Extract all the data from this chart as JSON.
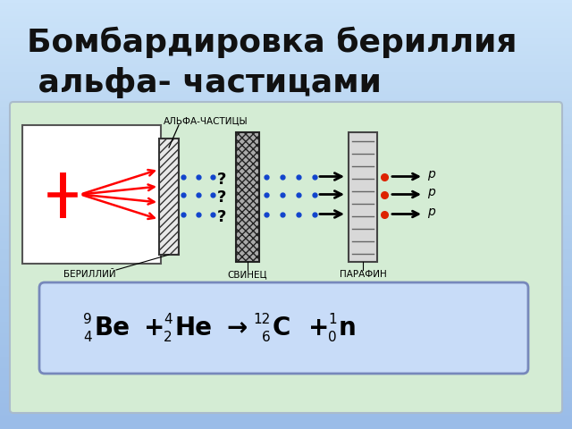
{
  "title_line1": "Бомбардировка бериллия",
  "title_line2": " альфа- частицами",
  "title_fontsize": 26,
  "title_color": "#111111",
  "bg_top_color": "#c8e0f8",
  "bg_bot_color": "#a0bce0",
  "panel_bg": "#d4ecd4",
  "panel_border": "#9abaaa",
  "formula_bg": "#c8dcf8",
  "formula_border": "#8899cc",
  "label_berylliy": "БЕРИЛЛИЙ",
  "label_svinec": "СВИНЕЦ",
  "label_parafin": "ПАРАФИН",
  "label_alpha": "АЛЬФА-ЧАСТИЦЫ",
  "label_p": "р"
}
